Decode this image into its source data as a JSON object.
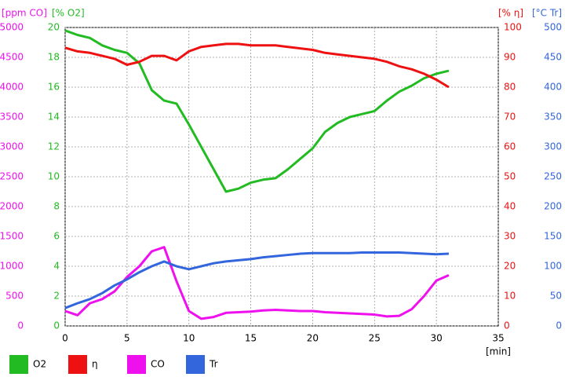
{
  "chart_data": {
    "type": "line",
    "ylabel": "[ppm CO]",
    "y2label": "[% O2]",
    "y3label": "[% η]",
    "y4label": "[°C Tr]",
    "xlabel": "[min]",
    "x": [
      0,
      1,
      2,
      3,
      4,
      5,
      6,
      7,
      8,
      9,
      10,
      11,
      12,
      13,
      14,
      15,
      16,
      17,
      18,
      19,
      20,
      21,
      22,
      23,
      24,
      25,
      26,
      27,
      28,
      29,
      30,
      31
    ],
    "xlim": [
      0,
      35
    ],
    "xticks": [
      0,
      5,
      10,
      15,
      20,
      25,
      30,
      35
    ],
    "ylim": [
      0,
      5000
    ],
    "yticks": [
      0,
      500,
      1000,
      1500,
      2000,
      2500,
      3000,
      3500,
      4000,
      4500,
      5000
    ],
    "y2lim": [
      0,
      20
    ],
    "y2ticks": [
      0,
      2,
      4,
      6,
      8,
      10,
      12,
      14,
      16,
      18,
      20
    ],
    "y3lim": [
      0,
      100
    ],
    "y3ticks": [
      0,
      10,
      20,
      30,
      40,
      50,
      60,
      70,
      80,
      90,
      100
    ],
    "y4lim": [
      0,
      500
    ],
    "y4ticks": [
      0,
      50,
      100,
      150,
      200,
      250,
      300,
      350,
      400,
      450,
      500
    ],
    "grid": true,
    "series": [
      {
        "name": "O2",
        "color": "#22bb22",
        "axis": "y2",
        "values": [
          19.8,
          19.5,
          19.3,
          18.8,
          18.5,
          18.3,
          17.6,
          15.8,
          15.1,
          14.9,
          13.5,
          12.0,
          10.5,
          9.0,
          9.2,
          9.6,
          9.8,
          9.9,
          10.5,
          11.2,
          11.9,
          13.0,
          13.6,
          14.0,
          14.2,
          14.4,
          15.1,
          15.7,
          16.1,
          16.6,
          16.9,
          17.1
        ]
      },
      {
        "name": "η",
        "color": "#ee1111",
        "axis": "y3",
        "values": [
          93.2,
          92,
          91.5,
          90.5,
          89.5,
          87.5,
          88.5,
          90.5,
          90.5,
          89,
          92,
          93.5,
          94,
          94.5,
          94.5,
          94,
          94,
          94,
          93.5,
          93,
          92.5,
          91.5,
          91,
          90.5,
          90,
          89.5,
          88.5,
          87,
          86,
          84.5,
          82.5,
          80
        ]
      },
      {
        "name": "CO",
        "color": "#ee11ee",
        "axis": "y",
        "values": [
          250,
          180,
          380,
          450,
          580,
          820,
          1000,
          1250,
          1320,
          750,
          250,
          120,
          150,
          220,
          230,
          240,
          260,
          270,
          260,
          250,
          250,
          230,
          220,
          210,
          200,
          190,
          160,
          170,
          280,
          500,
          760,
          850
        ]
      },
      {
        "name": "Tr",
        "color": "#3366dd",
        "axis": "y4",
        "values": [
          30,
          38,
          45,
          55,
          68,
          78,
          90,
          100,
          108,
          100,
          95,
          100,
          105,
          108,
          110,
          112,
          115,
          117,
          119,
          121,
          122,
          122,
          122,
          122,
          123,
          123,
          123,
          123,
          122,
          121,
          120,
          121
        ]
      }
    ]
  }
}
